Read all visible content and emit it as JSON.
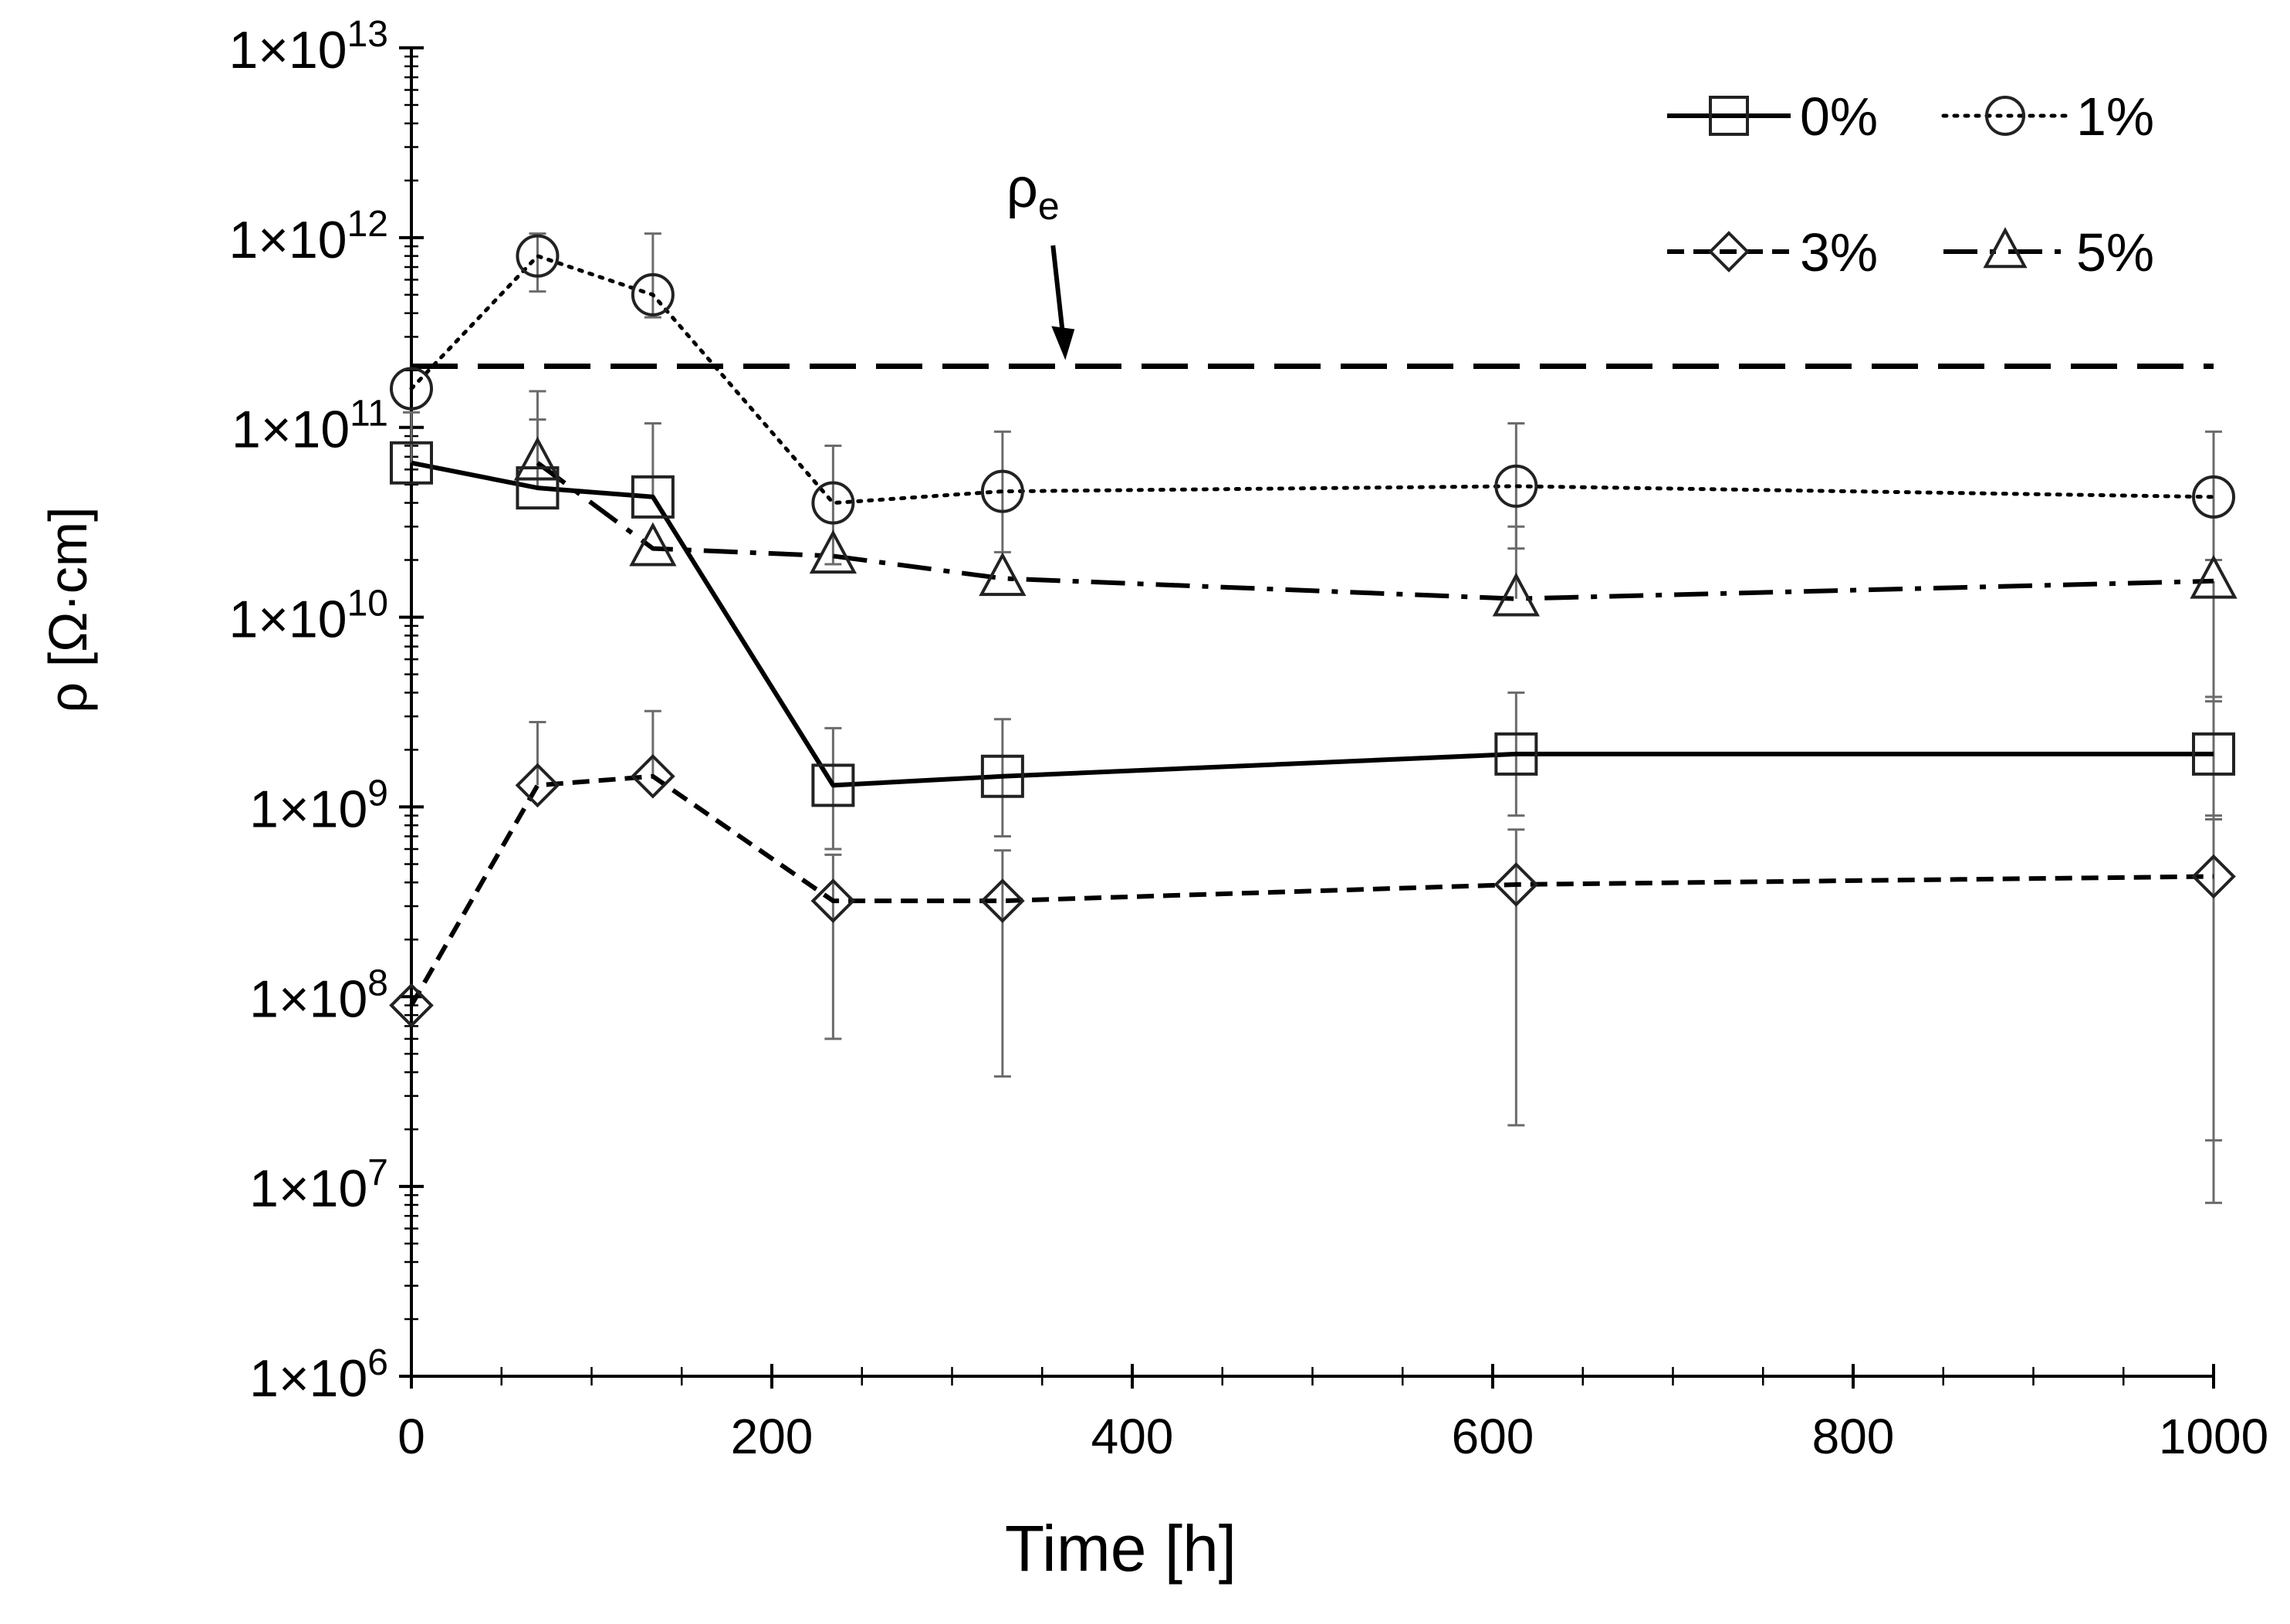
{
  "chart_data": {
    "type": "line",
    "title": "",
    "xlabel": "Time [h]",
    "ylabel": "ρ [Ω·cm]",
    "xlim": [
      0,
      1000
    ],
    "ylim_log10": [
      6,
      13
    ],
    "yscale": "log",
    "grid": false,
    "legend_position": "top-right",
    "x_ticks": [
      {
        "value": 0,
        "label": "0"
      },
      {
        "value": 200,
        "label": "200"
      },
      {
        "value": 400,
        "label": "400"
      },
      {
        "value": 600,
        "label": "600"
      },
      {
        "value": 800,
        "label": "800"
      },
      {
        "value": 1000,
        "label": "1000"
      }
    ],
    "y_ticks": [
      {
        "exp": 6,
        "mant": "1×10",
        "sup": "6"
      },
      {
        "exp": 7,
        "mant": "1×10",
        "sup": "7"
      },
      {
        "exp": 8,
        "mant": "1×10",
        "sup": "8"
      },
      {
        "exp": 9,
        "mant": "1×10",
        "sup": "9"
      },
      {
        "exp": 10,
        "mant": "1×10",
        "sup": "10"
      },
      {
        "exp": 11,
        "mant": "1×10",
        "sup": "11"
      },
      {
        "exp": 12,
        "mant": "1×10",
        "sup": "12"
      },
      {
        "exp": 13,
        "mant": "1×10",
        "sup": "13"
      }
    ],
    "x": [
      0,
      70,
      134,
      234,
      328,
      613,
      1000
    ],
    "series": [
      {
        "name": "0%",
        "marker": "square",
        "line": "solid",
        "values": [
          65000000000.0,
          48000000000.0,
          43000000000.0,
          1300000000.0,
          1450000000.0,
          1900000000.0,
          1900000000.0
        ],
        "err_low": [
          null,
          null,
          null,
          600000000.0,
          700000000.0,
          900000000.0,
          900000000.0
        ],
        "err_high": [
          120000000000.0,
          110000000000.0,
          105000000000.0,
          2600000000.0,
          2900000000.0,
          4000000000.0,
          3800000000.0
        ]
      },
      {
        "name": "1%",
        "marker": "circle",
        "line": "dotted",
        "values": [
          160000000000.0,
          800000000000.0,
          500000000000.0,
          40000000000.0,
          46000000000.0,
          49000000000.0,
          43000000000.0
        ],
        "err_low": [
          null,
          520000000000.0,
          380000000000.0,
          19000000000.0,
          22000000000.0,
          23000000000.0,
          20000000000.0
        ],
        "err_high": [
          null,
          1050000000000.0,
          1050000000000.0,
          80000000000.0,
          95000000000.0,
          105000000000.0,
          95000000000.0
        ],
        "only_segments": [
          0,
          1,
          2,
          3
        ]
      },
      {
        "name": "3%",
        "marker": "diamond",
        "line": "dashed",
        "values": [
          90000000.0,
          1300000000.0,
          1450000000.0,
          320000000.0,
          320000000.0,
          390000000.0,
          430000000.0
        ],
        "err_low": [
          null,
          null,
          null,
          60000000.0,
          38000000.0,
          21000000.0,
          17500000.0
        ],
        "err_high": [
          null,
          2800000000.0,
          3200000000.0,
          560000000.0,
          590000000.0,
          760000000.0,
          860000000.0
        ]
      },
      {
        "name": "5%",
        "marker": "triangle",
        "line": "dashdot",
        "values": [
          null,
          65000000000.0,
          23000000000.0,
          21000000000.0,
          16000000000.0,
          12500000000.0,
          15500000000.0
        ],
        "err_low": [
          null,
          null,
          null,
          null,
          null,
          null,
          8200000.0
        ],
        "err_high": [
          null,
          155000000000.0,
          null,
          null,
          null,
          30000000000.0,
          3600000000.0
        ]
      }
    ],
    "reference_line": {
      "label": "ρ",
      "sub": "e",
      "value": 210000000000.0,
      "style": "long-dash"
    },
    "legend": [
      {
        "name": "0%",
        "marker": "square",
        "line": "solid"
      },
      {
        "name": "1%",
        "marker": "circle",
        "line": "dotted"
      },
      {
        "name": "3%",
        "marker": "diamond",
        "line": "dashed"
      },
      {
        "name": "5%",
        "marker": "triangle",
        "line": "dashdot"
      }
    ]
  }
}
